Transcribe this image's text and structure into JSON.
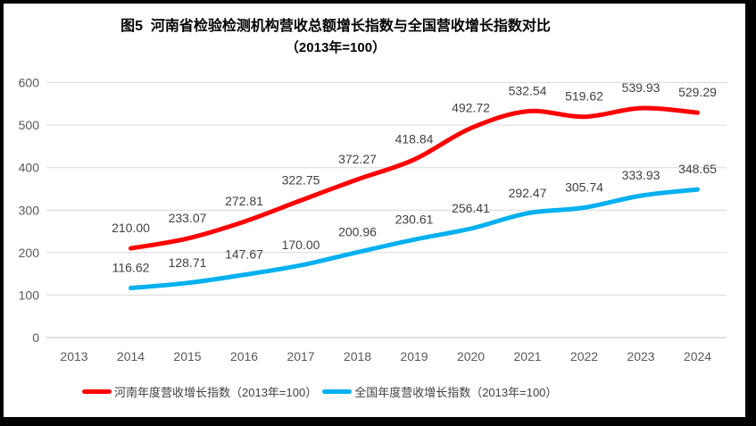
{
  "chart_data": {
    "type": "line",
    "title_line1": "图5  河南省检验检测机构营收总额增长指数与全国营收增长指数对比",
    "title_line2": "（2013年=100）",
    "categories": [
      "2013",
      "2014",
      "2015",
      "2016",
      "2017",
      "2018",
      "2019",
      "2020",
      "2021",
      "2022",
      "2023",
      "2024"
    ],
    "series": [
      {
        "name": "河南年度营收增长指数（2013年=100）",
        "color": "#FF0000",
        "values": [
          null,
          210.0,
          233.07,
          272.81,
          322.75,
          372.27,
          418.84,
          492.72,
          532.54,
          519.62,
          539.93,
          529.29
        ]
      },
      {
        "name": "全国年度营收增长指数（2013年=100）",
        "color": "#00B0F0",
        "values": [
          null,
          116.62,
          128.71,
          147.67,
          170.0,
          200.96,
          230.61,
          256.41,
          292.47,
          305.74,
          333.93,
          348.65
        ]
      }
    ],
    "ylim": [
      0,
      600
    ],
    "ytick_interval": 100,
    "yticks": [
      "0",
      "100",
      "200",
      "300",
      "400",
      "500",
      "600"
    ],
    "grid": true,
    "data_labels": true,
    "data_label_decimals": 2,
    "legend_position": "bottom",
    "line_style": "smooth"
  },
  "colors": {
    "frame_border": "#000000",
    "gridline": "#d9d9d9",
    "axis_line": "#bfbfbf",
    "tick_text": "#595959",
    "data_label_text": "#404040",
    "title_text": "#000000"
  }
}
